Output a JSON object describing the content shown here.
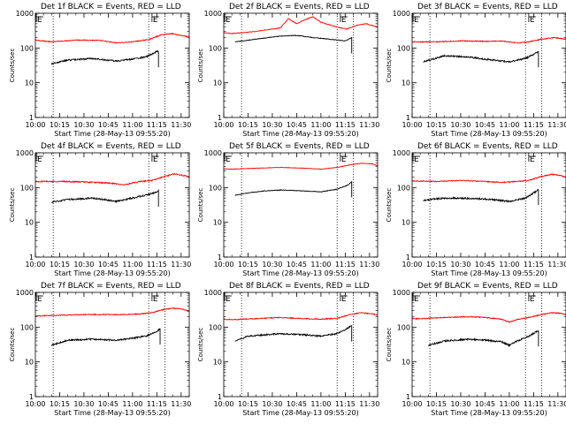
{
  "chart_data": {
    "type": "line",
    "shared": {
      "xlabel": "Start Time (28-May-13 09:55:20)",
      "ylabel": "Counts/sec",
      "ylim": [
        1,
        1000
      ],
      "y_ticks": [
        "1",
        "10",
        "100",
        "1000"
      ],
      "x_ticks": [
        "10:00",
        "10:15",
        "10:30",
        "10:45",
        "11:00",
        "11:15",
        "11:30"
      ],
      "x_tick_minutes": [
        0,
        15,
        30,
        45,
        60,
        75,
        90
      ],
      "xlim_minutes": [
        0,
        95
      ],
      "flag_label": "E",
      "flag_minutes": [
        -5,
        72
      ],
      "marker_minutes": [
        -5,
        11,
        70,
        80
      ],
      "series_colors": {
        "events": "#000000",
        "lld": "#ff0000"
      },
      "series_names": [
        "Events",
        "LLD"
      ]
    },
    "panels": [
      {
        "title": "Det 1f BLACK = Events, RED = LLD",
        "events": {
          "start": 10,
          "end": 76,
          "anchors": [
            [
              10,
              35
            ],
            [
              20,
              45
            ],
            [
              35,
              50
            ],
            [
              50,
              42
            ],
            [
              60,
              48
            ],
            [
              68,
              55
            ],
            [
              73,
              70
            ],
            [
              75,
              80
            ]
          ],
          "noise": 0.05
        },
        "lld": {
          "start": -8,
          "end": 95,
          "anchors": [
            [
              -8,
              175
            ],
            [
              0,
              170
            ],
            [
              10,
              150
            ],
            [
              25,
              170
            ],
            [
              40,
              165
            ],
            [
              50,
              140
            ],
            [
              60,
              150
            ],
            [
              70,
              175
            ],
            [
              78,
              240
            ],
            [
              84,
              260
            ],
            [
              90,
              230
            ],
            [
              95,
              210
            ]
          ],
          "noise": 0.03
        }
      },
      {
        "title": "Det 2f BLACK = Events, RED = LLD",
        "events": {
          "start": 7,
          "end": 79,
          "anchors": [
            [
              7,
              150
            ],
            [
              20,
              180
            ],
            [
              35,
              220
            ],
            [
              45,
              230
            ],
            [
              55,
              200
            ],
            [
              65,
              180
            ],
            [
              75,
              160
            ],
            [
              79,
              200
            ]
          ],
          "noise": 0.02
        },
        "lld": {
          "start": -8,
          "end": 95,
          "anchors": [
            [
              -8,
              300
            ],
            [
              5,
              260
            ],
            [
              20,
              300
            ],
            [
              35,
              380
            ],
            [
              40,
              700
            ],
            [
              45,
              500
            ],
            [
              50,
              650
            ],
            [
              55,
              800
            ],
            [
              60,
              550
            ],
            [
              70,
              400
            ],
            [
              76,
              350
            ],
            [
              82,
              450
            ],
            [
              88,
              500
            ],
            [
              95,
              400
            ]
          ],
          "noise": 0.02
        }
      },
      {
        "title": "Det 3f BLACK = Events, RED = LLD",
        "events": {
          "start": 7,
          "end": 78,
          "anchors": [
            [
              7,
              40
            ],
            [
              20,
              60
            ],
            [
              35,
              55
            ],
            [
              50,
              45
            ],
            [
              60,
              40
            ],
            [
              70,
              50
            ],
            [
              75,
              65
            ],
            [
              78,
              80
            ]
          ],
          "noise": 0.05
        },
        "lld": {
          "start": -8,
          "end": 95,
          "anchors": [
            [
              -8,
              150
            ],
            [
              0,
              150
            ],
            [
              15,
              150
            ],
            [
              30,
              160
            ],
            [
              45,
              155
            ],
            [
              55,
              160
            ],
            [
              65,
              140
            ],
            [
              72,
              150
            ],
            [
              80,
              180
            ],
            [
              88,
              200
            ],
            [
              95,
              180
            ]
          ],
          "noise": 0.03
        }
      },
      {
        "title": "Det 4f BLACK = Events, RED = LLD",
        "events": {
          "start": 10,
          "end": 76,
          "anchors": [
            [
              10,
              38
            ],
            [
              20,
              45
            ],
            [
              35,
              50
            ],
            [
              50,
              40
            ],
            [
              60,
              50
            ],
            [
              68,
              60
            ],
            [
              73,
              70
            ],
            [
              76,
              80
            ]
          ],
          "noise": 0.05
        },
        "lld": {
          "start": -8,
          "end": 95,
          "anchors": [
            [
              -8,
              160
            ],
            [
              0,
              150
            ],
            [
              15,
              150
            ],
            [
              30,
              145
            ],
            [
              45,
              135
            ],
            [
              55,
              120
            ],
            [
              65,
              150
            ],
            [
              72,
              160
            ],
            [
              80,
              210
            ],
            [
              86,
              250
            ],
            [
              92,
              220
            ],
            [
              95,
              200
            ]
          ],
          "noise": 0.04
        }
      },
      {
        "title": "Det 5f BLACK = Events, RED = LLD",
        "events": {
          "start": 7,
          "end": 79,
          "anchors": [
            [
              7,
              60
            ],
            [
              15,
              70
            ],
            [
              25,
              80
            ],
            [
              35,
              85
            ],
            [
              50,
              80
            ],
            [
              60,
              75
            ],
            [
              70,
              90
            ],
            [
              77,
              120
            ],
            [
              79,
              150
            ]
          ],
          "noise": 0.02
        },
        "lld": {
          "start": -8,
          "end": 95,
          "anchors": [
            [
              -8,
              350
            ],
            [
              5,
              340
            ],
            [
              20,
              360
            ],
            [
              35,
              380
            ],
            [
              50,
              360
            ],
            [
              60,
              340
            ],
            [
              70,
              380
            ],
            [
              78,
              450
            ],
            [
              85,
              500
            ],
            [
              92,
              480
            ],
            [
              95,
              420
            ]
          ],
          "noise": 0.015
        }
      },
      {
        "title": "Det 6f BLACK = Events, RED = LLD",
        "events": {
          "start": 7,
          "end": 78,
          "anchors": [
            [
              7,
              42
            ],
            [
              15,
              48
            ],
            [
              25,
              50
            ],
            [
              40,
              48
            ],
            [
              50,
              45
            ],
            [
              60,
              40
            ],
            [
              70,
              50
            ],
            [
              76,
              75
            ],
            [
              78,
              90
            ]
          ],
          "noise": 0.05
        },
        "lld": {
          "start": -8,
          "end": 95,
          "anchors": [
            [
              -8,
              150
            ],
            [
              0,
              155
            ],
            [
              15,
              150
            ],
            [
              30,
              160
            ],
            [
              45,
              150
            ],
            [
              55,
              140
            ],
            [
              65,
              150
            ],
            [
              72,
              160
            ],
            [
              80,
              210
            ],
            [
              86,
              240
            ],
            [
              92,
              220
            ],
            [
              95,
              200
            ]
          ],
          "noise": 0.03
        }
      },
      {
        "title": "Det 7f BLACK = Events, RED = LLD",
        "events": {
          "start": 10,
          "end": 77,
          "anchors": [
            [
              10,
              30
            ],
            [
              20,
              42
            ],
            [
              35,
              45
            ],
            [
              50,
              42
            ],
            [
              60,
              48
            ],
            [
              68,
              55
            ],
            [
              74,
              70
            ],
            [
              77,
              90
            ]
          ],
          "noise": 0.05
        },
        "lld": {
          "start": -8,
          "end": 95,
          "anchors": [
            [
              -8,
              220
            ],
            [
              0,
              210
            ],
            [
              15,
              220
            ],
            [
              30,
              230
            ],
            [
              45,
              230
            ],
            [
              55,
              230
            ],
            [
              65,
              240
            ],
            [
              72,
              260
            ],
            [
              80,
              330
            ],
            [
              86,
              350
            ],
            [
              92,
              320
            ],
            [
              95,
              280
            ]
          ],
          "noise": 0.03
        }
      },
      {
        "title": "Det 8f BLACK = Events, RED = LLD",
        "events": {
          "start": 7,
          "end": 79,
          "anchors": [
            [
              7,
              40
            ],
            [
              15,
              55
            ],
            [
              25,
              60
            ],
            [
              35,
              65
            ],
            [
              50,
              60
            ],
            [
              60,
              55
            ],
            [
              70,
              65
            ],
            [
              76,
              90
            ],
            [
              79,
              110
            ]
          ],
          "noise": 0.05
        },
        "lld": {
          "start": -8,
          "end": 95,
          "anchors": [
            [
              -8,
              180
            ],
            [
              5,
              165
            ],
            [
              20,
              175
            ],
            [
              35,
              190
            ],
            [
              50,
              175
            ],
            [
              60,
              170
            ],
            [
              70,
              180
            ],
            [
              78,
              230
            ],
            [
              85,
              260
            ],
            [
              92,
              240
            ],
            [
              95,
              220
            ]
          ],
          "noise": 0.03
        }
      },
      {
        "title": "Det 9f BLACK = Events, RED = LLD",
        "events": {
          "start": 10,
          "end": 78,
          "anchors": [
            [
              10,
              30
            ],
            [
              20,
              40
            ],
            [
              35,
              45
            ],
            [
              45,
              42
            ],
            [
              55,
              38
            ],
            [
              60,
              30
            ],
            [
              65,
              40
            ],
            [
              72,
              55
            ],
            [
              78,
              80
            ]
          ],
          "noise": 0.05
        },
        "lld": {
          "start": -8,
          "end": 95,
          "anchors": [
            [
              -8,
              180
            ],
            [
              5,
              175
            ],
            [
              20,
              190
            ],
            [
              35,
              200
            ],
            [
              45,
              190
            ],
            [
              55,
              170
            ],
            [
              60,
              140
            ],
            [
              66,
              170
            ],
            [
              72,
              190
            ],
            [
              80,
              230
            ],
            [
              86,
              260
            ],
            [
              92,
              250
            ],
            [
              95,
              230
            ]
          ],
          "noise": 0.03
        }
      }
    ]
  }
}
